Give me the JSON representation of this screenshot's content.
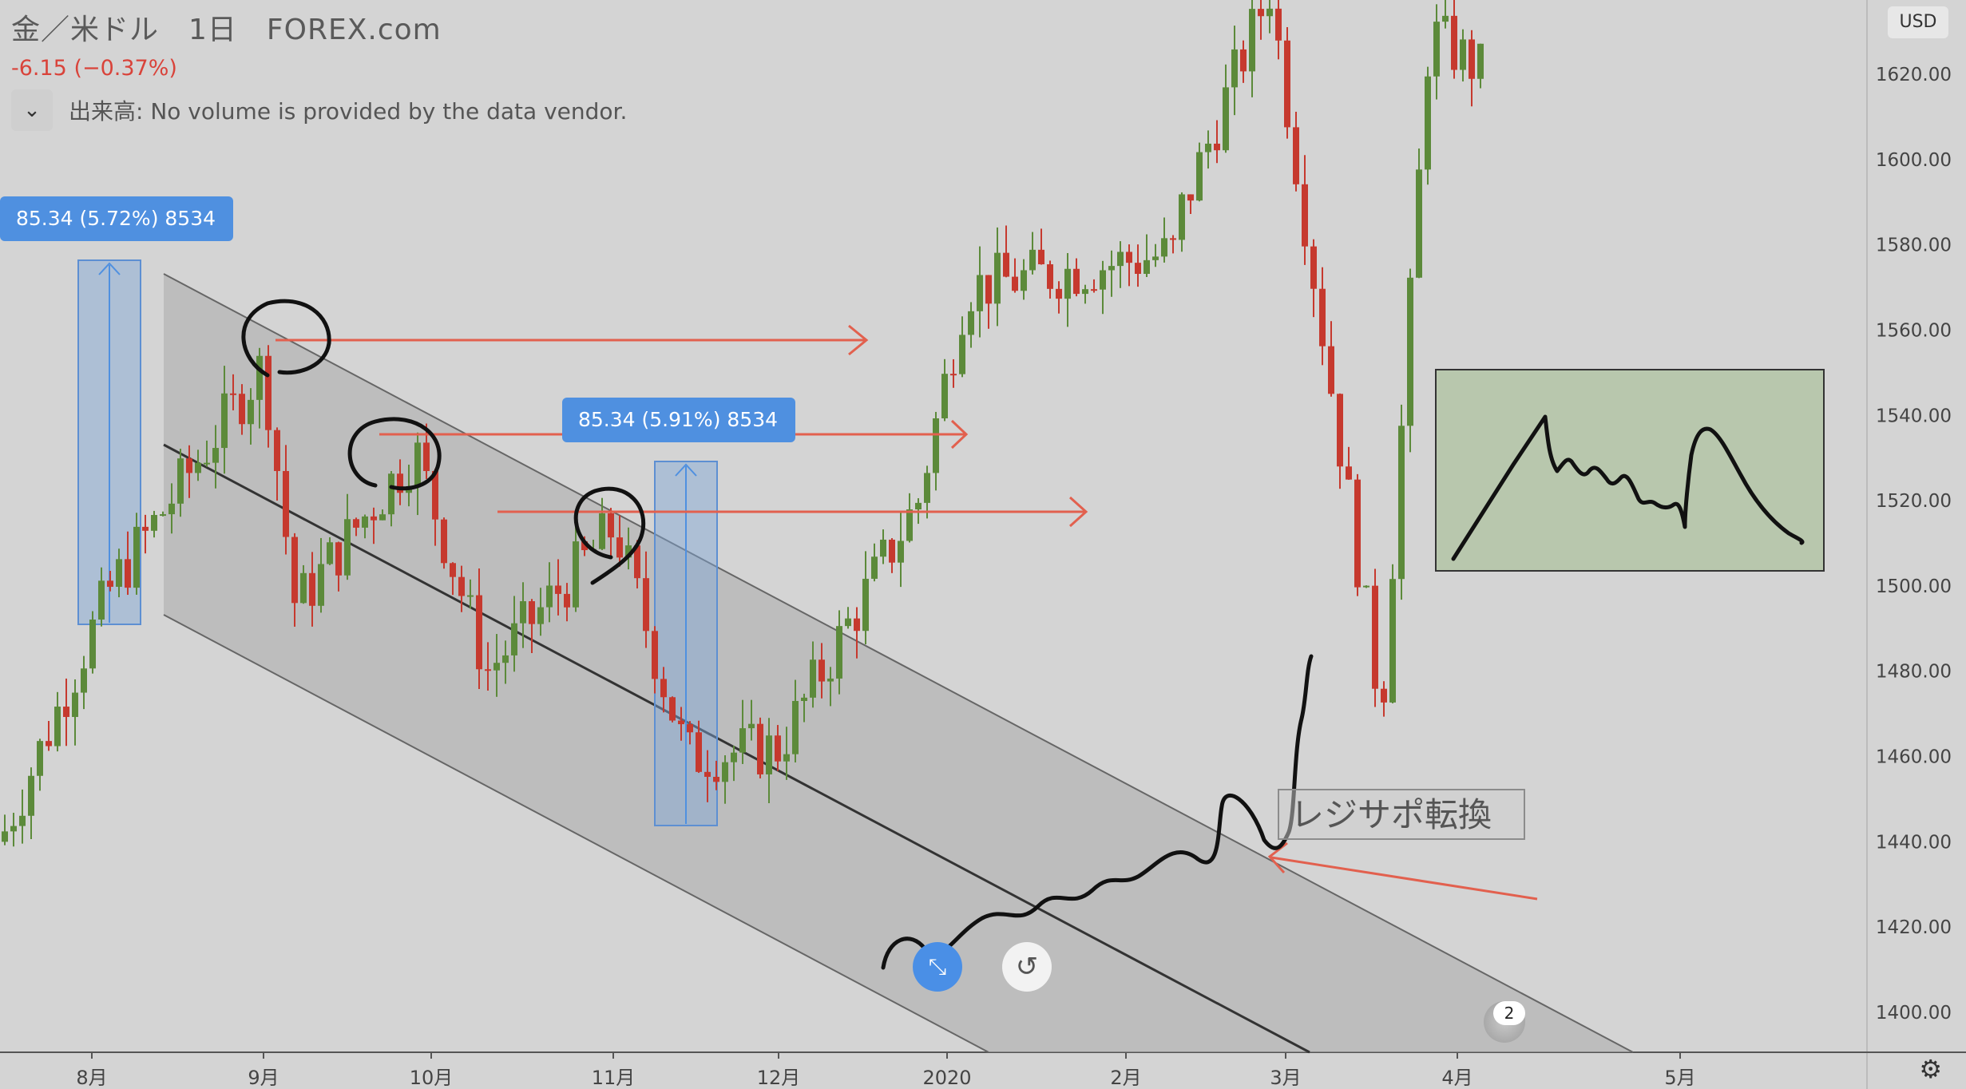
{
  "header": {
    "title": "金／米ドル　1日　FOREX.com",
    "change": "-6.15 (−0.37%)",
    "volume_label": "出来高: No volume is provided by the data vendor.",
    "collapse_icon": "chevron-down-icon"
  },
  "currency_badge": "USD",
  "measures": [
    {
      "label": "85.34 (5.72%) 8534"
    },
    {
      "label": "85.34 (5.91%) 8534"
    }
  ],
  "annotation_text": "レジサポ転換",
  "events_badge": {
    "icon": "us-flag-icon",
    "count": "2"
  },
  "controls": {
    "collapse_icon": "compress-icon",
    "reset_icon": "undo-icon",
    "settings_icon": "gear-icon"
  },
  "colors": {
    "up": "#5c8a3a",
    "down": "#c6392e",
    "arrow": "#e2604e",
    "measure": "#4f90e0",
    "channel": "#a9a9a9",
    "background": "#d4d4d4",
    "inset_panel": "#b8c7ad"
  },
  "chart_data": {
    "type": "candlestick",
    "symbol": "金／米ドル",
    "interval": "1日",
    "source": "FOREX.com",
    "ylim": [
      1395,
      1640
    ],
    "y_ticks": [
      "1400.00",
      "1420.00",
      "1440.00",
      "1460.00",
      "1480.00",
      "1500.00",
      "1520.00",
      "1540.00",
      "1560.00",
      "1580.00",
      "1600.00",
      "1620.00"
    ],
    "x_ticks": [
      "8月",
      "9月",
      "10月",
      "11月",
      "12月",
      "2020",
      "2月",
      "3月",
      "4月",
      "5月"
    ],
    "grid": false,
    "approx_path": [
      {
        "x": "8月",
        "y": 1440
      },
      {
        "x": "8月",
        "y": 1500
      },
      {
        "x": "9月",
        "y": 1552
      },
      {
        "x": "9月",
        "y": 1495
      },
      {
        "x": "10月",
        "y": 1532
      },
      {
        "x": "10月",
        "y": 1480
      },
      {
        "x": "11月",
        "y": 1514
      },
      {
        "x": "11月",
        "y": 1460
      },
      {
        "x": "12月",
        "y": 1462
      },
      {
        "x": "2020",
        "y": 1520
      },
      {
        "x": "2020",
        "y": 1570
      },
      {
        "x": "2月",
        "y": 1578
      },
      {
        "x": "2月",
        "y": 1560
      },
      {
        "x": "3月",
        "y": 1640
      },
      {
        "x": "3月",
        "y": 1470
      },
      {
        "x": "4月",
        "y": 1630
      },
      {
        "x": "4月",
        "y": 1620
      }
    ],
    "drawings": {
      "measure_ranges": [
        {
          "from": 1492,
          "to": 1577,
          "change": 85.34,
          "percent": 5.72
        },
        {
          "from": 1445,
          "to": 1530,
          "change": 85.34,
          "percent": 5.91
        }
      ],
      "horizontal_arrows_at": [
        1559,
        1537,
        1518
      ]
    }
  }
}
